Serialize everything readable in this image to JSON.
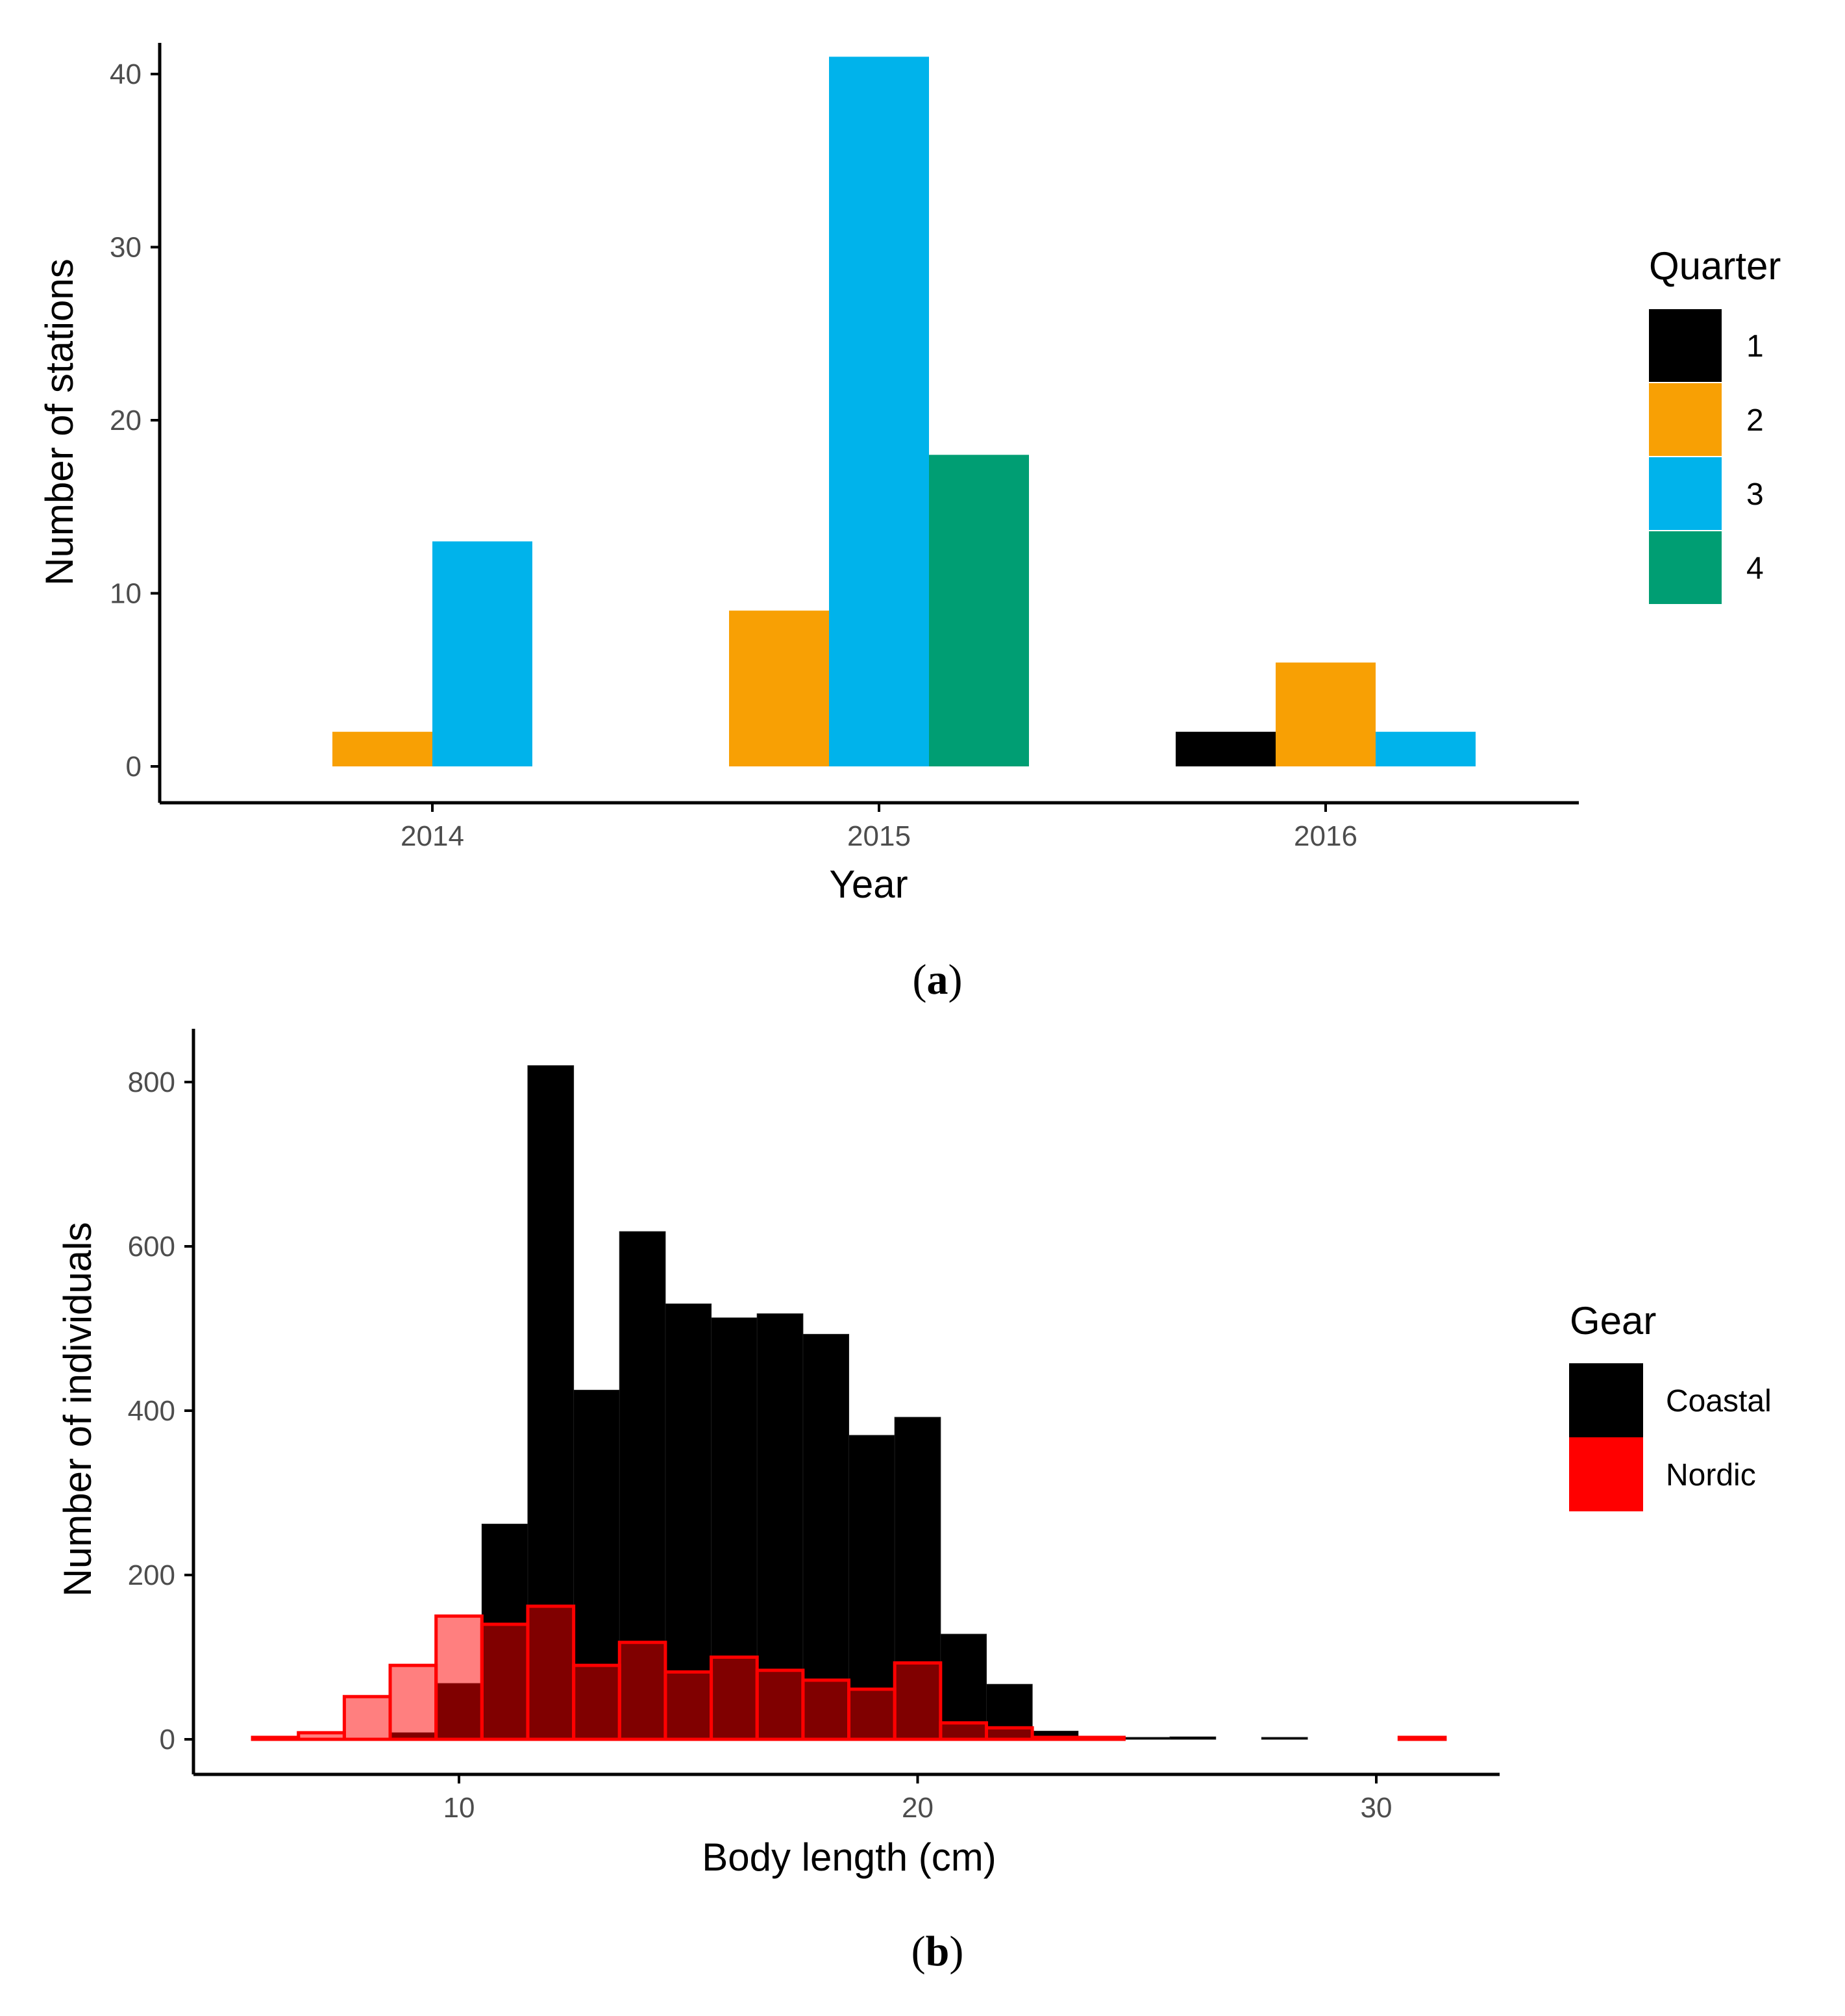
{
  "figure": {
    "panels": [
      {
        "label_open": "(",
        "label_letter": "a",
        "label_close": ")"
      },
      {
        "label_open": "(",
        "label_letter": "b",
        "label_close": ")"
      }
    ]
  },
  "chart_data": [
    {
      "type": "bar",
      "title": "",
      "xlabel": "Year",
      "ylabel": "Number of stations",
      "categories": [
        "2014",
        "2015",
        "2016"
      ],
      "ylim": [
        0,
        43
      ],
      "yticks": [
        0,
        10,
        20,
        30,
        40
      ],
      "legend_title": "Quarter",
      "legend_position": "right",
      "series": [
        {
          "name": "1",
          "color": "#000000",
          "values": [
            0,
            0,
            2
          ]
        },
        {
          "name": "2",
          "color": "#F8A004",
          "values": [
            2,
            9,
            6
          ]
        },
        {
          "name": "3",
          "color": "#00B3EB",
          "values": [
            13,
            41,
            2
          ]
        },
        {
          "name": "4",
          "color": "#009E73",
          "values": [
            0,
            18,
            0
          ]
        }
      ]
    },
    {
      "type": "bar",
      "subtype": "histogram",
      "title": "",
      "xlabel": "Body length (cm)",
      "ylabel": "Number of individuals",
      "xlim": [
        4.5,
        33
      ],
      "ylim": [
        -40,
        860
      ],
      "xticks": [
        10,
        20,
        30
      ],
      "yticks": [
        0,
        200,
        400,
        600,
        800
      ],
      "bin_width": 1,
      "legend_title": "Gear",
      "legend_position": "right",
      "series": [
        {
          "name": "Coastal",
          "color": "#000000",
          "bin_centers": [
            9,
            10,
            11,
            12,
            13,
            14,
            15,
            16,
            17,
            18,
            19,
            20,
            21,
            22,
            23,
            25,
            26,
            28
          ],
          "values": [
            8,
            68,
            262,
            820,
            425,
            618,
            530,
            513,
            518,
            493,
            370,
            392,
            128,
            67,
            10,
            2,
            3,
            2
          ]
        },
        {
          "name": "Nordic",
          "color": "#FF0000",
          "bin_centers": [
            6,
            7,
            8,
            9,
            10,
            11,
            12,
            13,
            14,
            15,
            16,
            17,
            18,
            19,
            20,
            21,
            22,
            23,
            24,
            31
          ],
          "values": [
            1,
            8,
            52,
            90,
            150,
            140,
            162,
            90,
            118,
            82,
            100,
            84,
            72,
            61,
            93,
            20,
            14,
            2,
            2,
            2
          ]
        }
      ]
    }
  ]
}
